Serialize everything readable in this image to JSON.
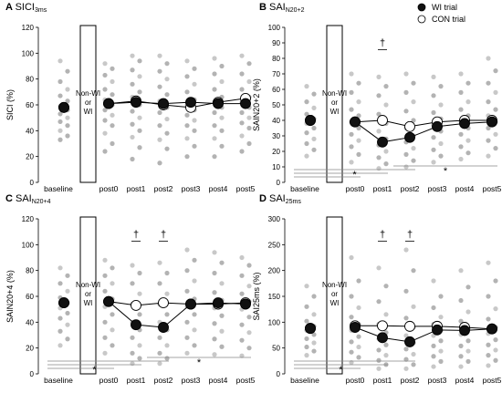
{
  "legend": {
    "items": [
      {
        "label": "WI trial",
        "marker": "filled"
      },
      {
        "label": "CON trial",
        "marker": "open"
      }
    ]
  },
  "chart_data": [
    {
      "type": "scatter",
      "panel": "A",
      "title_main": "SICI",
      "title_sub": "3ms",
      "ylabel": "SICI (%)",
      "ylim": [
        0,
        120
      ],
      "yticks": [
        0,
        20,
        40,
        60,
        80,
        100,
        120
      ],
      "categories": [
        "baseline",
        "post0",
        "post1",
        "post2",
        "post3",
        "post4",
        "post5"
      ],
      "box_label": [
        "Non-WI",
        "or",
        "WI"
      ],
      "series": [
        {
          "name": "WI trial",
          "values": [
            58,
            61,
            62,
            61,
            62,
            61,
            61
          ]
        },
        {
          "name": "CON trial",
          "values": [
            58,
            61,
            63,
            60,
            58,
            62,
            65
          ]
        }
      ],
      "daggers": [],
      "brackets": [],
      "individual": [
        [
          94,
          86,
          78,
          72,
          67,
          63,
          59,
          56,
          53,
          50,
          47,
          44,
          40,
          36,
          33
        ],
        [
          92,
          88,
          83,
          78,
          72,
          68,
          64,
          60,
          56,
          52,
          48,
          44,
          38,
          30,
          24
        ],
        [
          98,
          94,
          87,
          82,
          76,
          70,
          66,
          60,
          55,
          50,
          45,
          40,
          35,
          27,
          18
        ],
        [
          98,
          92,
          86,
          80,
          74,
          68,
          63,
          58,
          54,
          49,
          44,
          38,
          33,
          26,
          15
        ],
        [
          94,
          88,
          82,
          76,
          70,
          64,
          60,
          56,
          52,
          48,
          44,
          40,
          34,
          28,
          20
        ],
        [
          96,
          90,
          84,
          78,
          72,
          66,
          62,
          58,
          54,
          50,
          44,
          40,
          34,
          28,
          20
        ],
        [
          98,
          92,
          84,
          78,
          72,
          66,
          62,
          58,
          54,
          50,
          46,
          42,
          36,
          30,
          24
        ]
      ]
    },
    {
      "type": "scatter",
      "panel": "B",
      "title_main": "SAI",
      "title_sub": "N20+2",
      "ylabel": "SAIN20+2 (%)",
      "ylim": [
        0,
        100
      ],
      "yticks": [
        0,
        10,
        20,
        30,
        40,
        50,
        60,
        70,
        80,
        90,
        100
      ],
      "categories": [
        "baseline",
        "post0",
        "post1",
        "post2",
        "post3",
        "post4",
        "post5"
      ],
      "box_label": [
        "Non-WI",
        "or",
        "WI"
      ],
      "series": [
        {
          "name": "WI trial",
          "values": [
            40,
            39,
            26,
            29,
            36,
            38,
            39
          ]
        },
        {
          "name": "CON trial",
          "values": [
            40,
            39,
            40,
            36,
            39,
            40,
            40
          ]
        }
      ],
      "daggers": [
        "post1"
      ],
      "brackets": [
        {
          "from": "baseline",
          "to": "post0",
          "star": false
        },
        {
          "from": "baseline",
          "to": "post1",
          "star": false
        },
        {
          "from": "baseline",
          "to": "post2",
          "star": true
        },
        {
          "from": "post2",
          "to": "post5",
          "star": true
        }
      ],
      "individual": [
        [
          62,
          57,
          52,
          48,
          44,
          41,
          38,
          35,
          32,
          28,
          25,
          21,
          17
        ],
        [
          70,
          64,
          58,
          52,
          47,
          43,
          39,
          35,
          31,
          27,
          23,
          18,
          13
        ],
        [
          68,
          62,
          56,
          50,
          44,
          38,
          33,
          28,
          24,
          20,
          16,
          12,
          9
        ],
        [
          70,
          64,
          58,
          52,
          46,
          40,
          35,
          30,
          26,
          22,
          18,
          14,
          10
        ],
        [
          68,
          62,
          56,
          50,
          45,
          41,
          37,
          33,
          29,
          25,
          21,
          17,
          13
        ],
        [
          70,
          64,
          58,
          52,
          47,
          43,
          39,
          35,
          31,
          27,
          23,
          19,
          15
        ],
        [
          80,
          72,
          64,
          58,
          52,
          47,
          43,
          39,
          35,
          31,
          27,
          22,
          17
        ]
      ]
    },
    {
      "type": "scatter",
      "panel": "C",
      "title_main": "SAI",
      "title_sub": "N20+4",
      "ylabel": "SAIN20+4 (%)",
      "ylim": [
        0,
        120
      ],
      "yticks": [
        0,
        20,
        40,
        60,
        80,
        100,
        120
      ],
      "categories": [
        "baseline",
        "post0",
        "post1",
        "post2",
        "post3",
        "post4",
        "post5"
      ],
      "box_label": [
        "Non-WI",
        "or",
        "WI"
      ],
      "series": [
        {
          "name": "WI trial",
          "values": [
            55,
            56,
            38,
            36,
            54,
            55,
            54
          ]
        },
        {
          "name": "CON trial",
          "values": [
            55,
            56,
            53,
            55,
            54,
            54,
            55
          ]
        }
      ],
      "daggers": [
        "post1",
        "post2"
      ],
      "brackets": [
        {
          "from": "baseline",
          "to": "post0",
          "star": false
        },
        {
          "from": "baseline",
          "to": "post1",
          "star": true
        },
        {
          "from": "baseline",
          "to": "post2",
          "star": false
        },
        {
          "from": "post2",
          "to": "post5",
          "star": true
        }
      ],
      "individual": [
        [
          82,
          76,
          70,
          64,
          59,
          55,
          51,
          47,
          43,
          38,
          33,
          27,
          22
        ],
        [
          88,
          82,
          76,
          70,
          64,
          58,
          52,
          46,
          40,
          34,
          28,
          22,
          16
        ],
        [
          84,
          78,
          70,
          62,
          54,
          46,
          40,
          34,
          28,
          22,
          16,
          12,
          8
        ],
        [
          86,
          78,
          70,
          62,
          54,
          46,
          40,
          34,
          28,
          22,
          16,
          12,
          8
        ],
        [
          96,
          88,
          80,
          72,
          64,
          58,
          52,
          46,
          40,
          34,
          28,
          22,
          16
        ],
        [
          94,
          86,
          78,
          70,
          63,
          57,
          51,
          45,
          39,
          33,
          27,
          21,
          15
        ],
        [
          90,
          84,
          76,
          68,
          62,
          56,
          50,
          44,
          38,
          32,
          26,
          20,
          14
        ]
      ]
    },
    {
      "type": "scatter",
      "panel": "D",
      "title_main": "SAI",
      "title_sub": "25ms",
      "ylabel": "SAI25ms (%)",
      "ylim": [
        0,
        300
      ],
      "yticks": [
        0,
        50,
        100,
        150,
        200,
        250,
        300
      ],
      "categories": [
        "baseline",
        "post0",
        "post1",
        "post2",
        "post3",
        "post4",
        "post5"
      ],
      "box_label": [
        "Non-WI",
        "or",
        "WI"
      ],
      "series": [
        {
          "name": "WI trial",
          "values": [
            88,
            90,
            70,
            62,
            85,
            84,
            87
          ]
        },
        {
          "name": "CON trial",
          "values": [
            88,
            93,
            93,
            92,
            92,
            90,
            87
          ]
        }
      ],
      "daggers": [
        "post1",
        "post2"
      ],
      "brackets": [
        {
          "from": "baseline",
          "to": "post0",
          "star": false
        },
        {
          "from": "baseline",
          "to": "post1",
          "star": true
        },
        {
          "from": "baseline",
          "to": "post2",
          "star": false
        }
      ],
      "individual": [
        [
          170,
          150,
          130,
          115,
          102,
          92,
          84,
          76,
          68,
          60,
          52,
          44,
          36
        ],
        [
          225,
          180,
          150,
          128,
          110,
          96,
          84,
          72,
          62,
          52,
          42,
          32,
          22
        ],
        [
          205,
          170,
          140,
          115,
          96,
          80,
          68,
          56,
          46,
          36,
          26,
          18,
          10
        ],
        [
          240,
          200,
          160,
          130,
          108,
          90,
          74,
          60,
          48,
          38,
          28,
          18,
          10
        ],
        [
          180,
          150,
          128,
          110,
          96,
          84,
          74,
          64,
          54,
          44,
          34,
          24,
          14
        ],
        [
          200,
          168,
          142,
          120,
          102,
          88,
          76,
          64,
          54,
          44,
          34,
          24,
          14
        ],
        [
          215,
          180,
          150,
          126,
          106,
          90,
          78,
          66,
          56,
          46,
          36,
          26,
          16
        ]
      ]
    }
  ]
}
